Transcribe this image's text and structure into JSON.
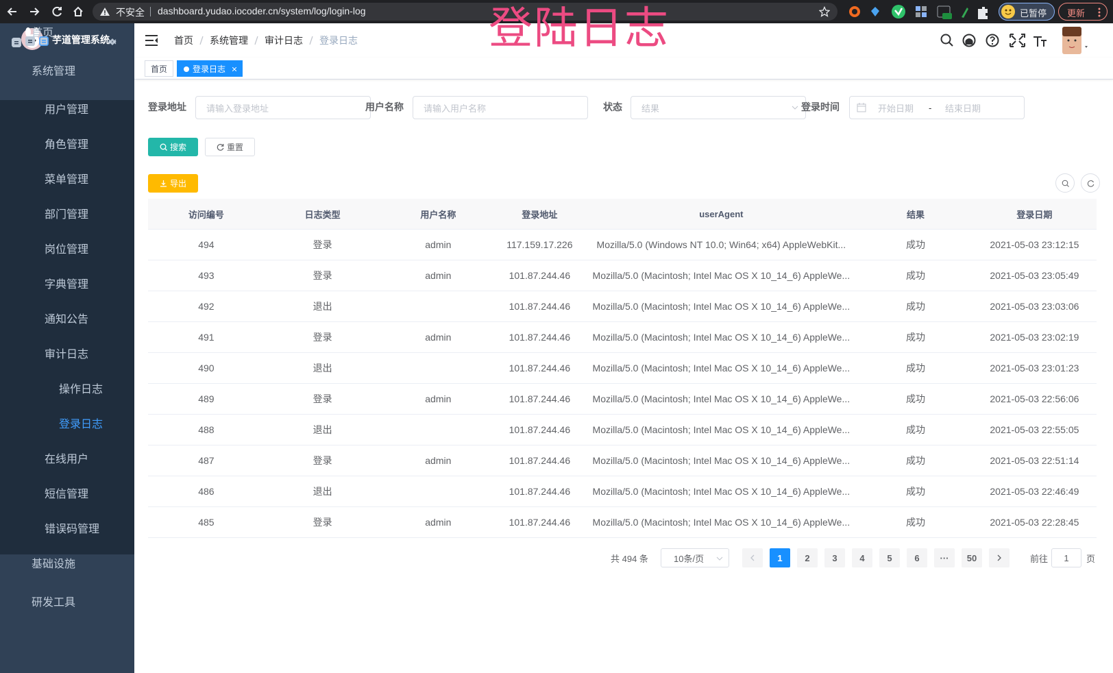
{
  "browser": {
    "insecure": "不安全",
    "url": "dashboard.yudao.iocoder.cn/system/log/login-log",
    "paused": "已暂停",
    "update": "更新"
  },
  "overlay_title": "登陆日志",
  "sidebar": {
    "logo": "芋道管理系统",
    "menu": [
      {
        "label": "首页",
        "level": 0
      },
      {
        "label": "系统管理",
        "level": 0,
        "expanded": true
      },
      {
        "label": "用户管理",
        "level": 1
      },
      {
        "label": "角色管理",
        "level": 1
      },
      {
        "label": "菜单管理",
        "level": 1
      },
      {
        "label": "部门管理",
        "level": 1
      },
      {
        "label": "岗位管理",
        "level": 1
      },
      {
        "label": "字典管理",
        "level": 1
      },
      {
        "label": "通知公告",
        "level": 1
      },
      {
        "label": "审计日志",
        "level": 1,
        "expanded": true
      },
      {
        "label": "操作日志",
        "level": 2
      },
      {
        "label": "登录日志",
        "level": 2,
        "active": true
      },
      {
        "label": "在线用户",
        "level": 1
      },
      {
        "label": "短信管理",
        "level": 1,
        "expanded": false
      },
      {
        "label": "错误码管理",
        "level": 1
      },
      {
        "label": "基础设施",
        "level": 0,
        "expanded": false
      },
      {
        "label": "研发工具",
        "level": 0,
        "expanded": false
      }
    ]
  },
  "navbar": {
    "breadcrumb": [
      "首页",
      "系统管理",
      "审计日志",
      "登录日志"
    ]
  },
  "tags": [
    "首页",
    "登录日志"
  ],
  "filters": [
    {
      "label": "登录地址",
      "placeholder": "请输入登录地址"
    },
    {
      "label": "用户名称",
      "placeholder": "请输入用户名称"
    },
    {
      "label": "状态",
      "placeholder": "结果"
    },
    {
      "label": "登录时间",
      "start": "开始日期",
      "sep": "-",
      "end": "结束日期"
    }
  ],
  "buttons": {
    "search": "搜索",
    "reset": "重置",
    "export": "导出"
  },
  "table": {
    "columns": [
      "访问编号",
      "日志类型",
      "用户名称",
      "登录地址",
      "userAgent",
      "结果",
      "登录日期"
    ],
    "rows": [
      [
        "494",
        "登录",
        "admin",
        "117.159.17.226",
        "Mozilla/5.0 (Windows NT 10.0; Win64; x64) AppleWebKit...",
        "成功",
        "2021-05-03 23:12:15"
      ],
      [
        "493",
        "登录",
        "admin",
        "101.87.244.46",
        "Mozilla/5.0 (Macintosh; Intel Mac OS X 10_14_6) AppleWe...",
        "成功",
        "2021-05-03 23:05:49"
      ],
      [
        "492",
        "退出",
        null,
        "101.87.244.46",
        "Mozilla/5.0 (Macintosh; Intel Mac OS X 10_14_6) AppleWe...",
        "成功",
        "2021-05-03 23:03:06"
      ],
      [
        "491",
        "登录",
        "admin",
        "101.87.244.46",
        "Mozilla/5.0 (Macintosh; Intel Mac OS X 10_14_6) AppleWe...",
        "成功",
        "2021-05-03 23:02:19"
      ],
      [
        "490",
        "退出",
        null,
        "101.87.244.46",
        "Mozilla/5.0 (Macintosh; Intel Mac OS X 10_14_6) AppleWe...",
        "成功",
        "2021-05-03 23:01:23"
      ],
      [
        "489",
        "登录",
        "admin",
        "101.87.244.46",
        "Mozilla/5.0 (Macintosh; Intel Mac OS X 10_14_6) AppleWe...",
        "成功",
        "2021-05-03 22:56:06"
      ],
      [
        "488",
        "退出",
        null,
        "101.87.244.46",
        "Mozilla/5.0 (Macintosh; Intel Mac OS X 10_14_6) AppleWe...",
        "成功",
        "2021-05-03 22:55:05"
      ],
      [
        "487",
        "登录",
        "admin",
        "101.87.244.46",
        "Mozilla/5.0 (Macintosh; Intel Mac OS X 10_14_6) AppleWe...",
        "成功",
        "2021-05-03 22:51:14"
      ],
      [
        "486",
        "退出",
        null,
        "101.87.244.46",
        "Mozilla/5.0 (Macintosh; Intel Mac OS X 10_14_6) AppleWe...",
        "成功",
        "2021-05-03 22:46:49"
      ],
      [
        "485",
        "登录",
        "admin",
        "101.87.244.46",
        "Mozilla/5.0 (Macintosh; Intel Mac OS X 10_14_6) AppleWe...",
        "成功",
        "2021-05-03 22:28:45"
      ]
    ]
  },
  "pagination": {
    "total": "共 494 条",
    "size": "10条/页",
    "pages": [
      "1",
      "2",
      "3",
      "4",
      "5",
      "6",
      "···",
      "50"
    ],
    "current": "1",
    "goto": "前往",
    "goto_value": "1",
    "page_unit": "页"
  }
}
